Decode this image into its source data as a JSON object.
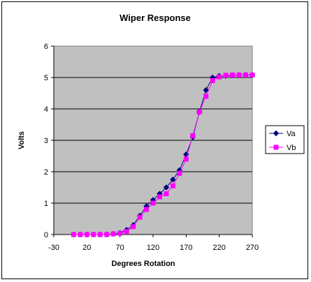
{
  "chart_data": {
    "type": "scatter",
    "title": "Wiper Response",
    "xlabel": "Degrees Rotation",
    "ylabel": "Volts",
    "xlim": [
      -30,
      270
    ],
    "ylim": [
      0,
      6
    ],
    "x_ticks": [
      -30,
      20,
      70,
      120,
      170,
      220,
      270
    ],
    "y_ticks": [
      0,
      1,
      2,
      3,
      4,
      5,
      6
    ],
    "grid": "horizontal",
    "plot_background": "#c0c0c0",
    "legend_position": "right",
    "series": [
      {
        "name": "Va",
        "color": "#000080",
        "marker": "diamond",
        "x": [
          0,
          10,
          20,
          30,
          40,
          50,
          60,
          70,
          80,
          90,
          100,
          110,
          120,
          130,
          140,
          150,
          160,
          170,
          180,
          190,
          200,
          210,
          220,
          230,
          240,
          250,
          260,
          270
        ],
        "y": [
          0,
          0,
          0,
          0,
          0,
          0,
          0.02,
          0.05,
          0.15,
          0.3,
          0.6,
          0.9,
          1.1,
          1.3,
          1.5,
          1.75,
          2.05,
          2.55,
          3.1,
          3.9,
          4.6,
          5.0,
          5.05,
          5.05,
          5.07,
          5.08,
          5.08,
          5.08
        ]
      },
      {
        "name": "Vb",
        "color": "#ff00ff",
        "marker": "square",
        "x": [
          0,
          10,
          20,
          30,
          40,
          50,
          60,
          70,
          80,
          90,
          100,
          110,
          120,
          130,
          140,
          150,
          160,
          170,
          180,
          190,
          200,
          210,
          220,
          230,
          240,
          250,
          260,
          270
        ],
        "y": [
          0,
          0,
          0,
          0,
          0,
          0,
          0.02,
          0.04,
          0.1,
          0.25,
          0.55,
          0.8,
          1.0,
          1.2,
          1.3,
          1.55,
          1.95,
          2.4,
          3.15,
          3.9,
          4.4,
          4.9,
          5.02,
          5.07,
          5.08,
          5.08,
          5.08,
          5.08
        ]
      }
    ]
  }
}
